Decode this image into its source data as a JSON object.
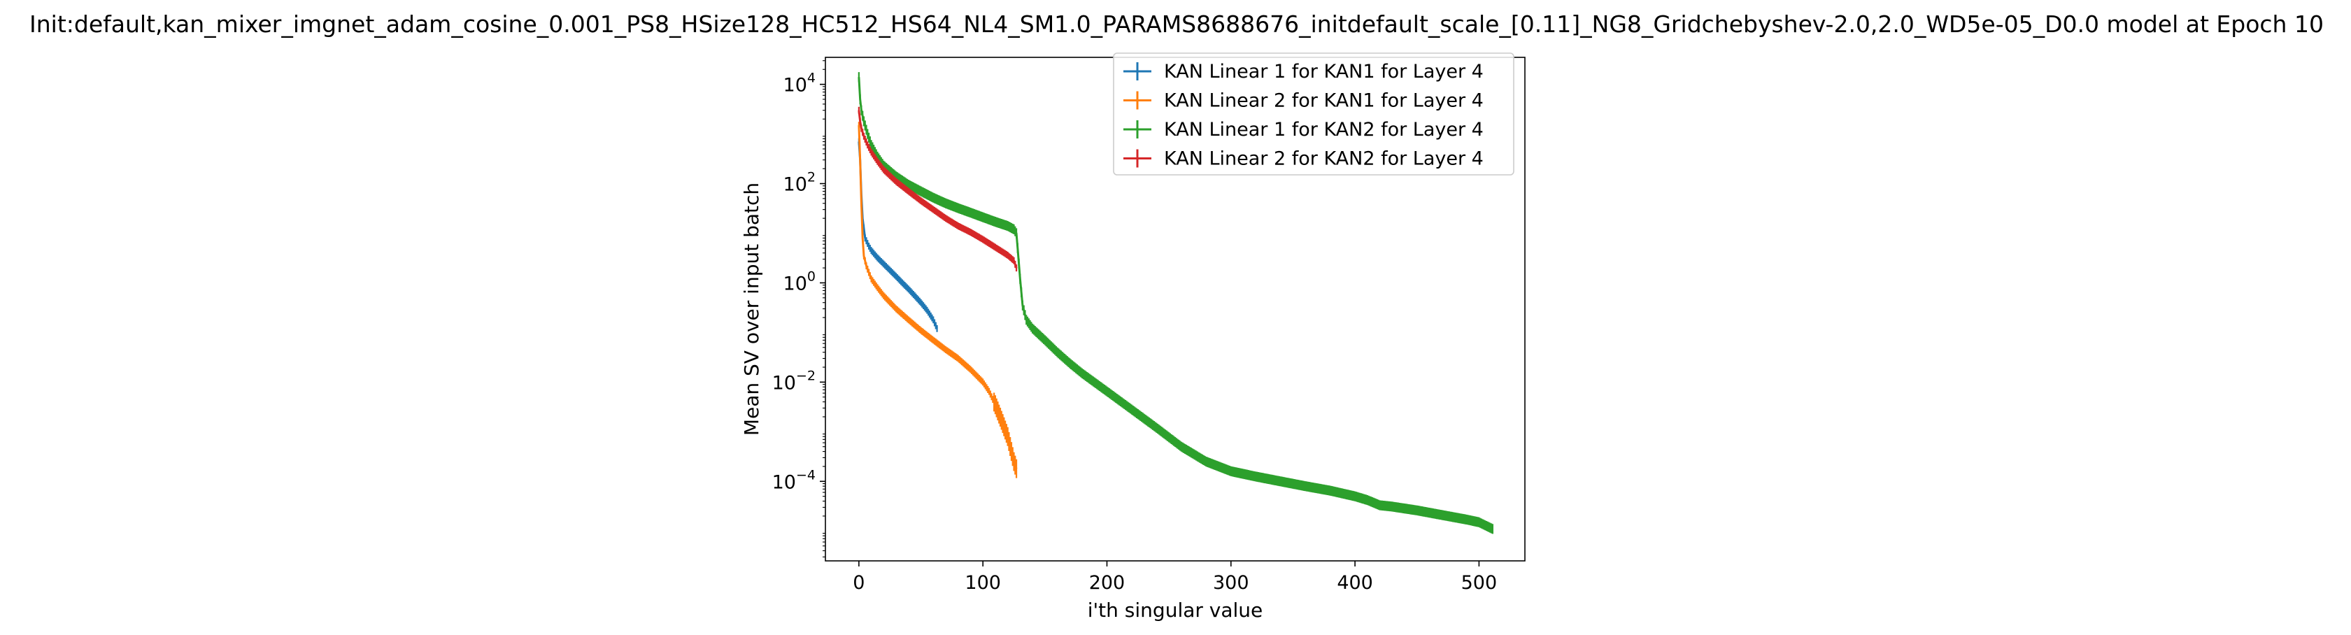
{
  "chart_data": {
    "type": "line",
    "title": "Init:default,kan_mixer_imgnet_adam_cosine_0.001_PS8_HSize128_HC512_HS64_NL4_SM1.0_PARAMS8688676_initdefault_scale_[0.11]_NG8_Gridchebyshev-2.0,2.0_WD5e-05_D0.0 model at Epoch 10",
    "xlabel": "i'th singular value",
    "ylabel": "Mean SV over input batch",
    "xlim": [
      -27,
      537
    ],
    "ylim": [
      2.5e-06,
      35000.0
    ],
    "yscale": "log",
    "grid": false,
    "legend_position": "top-right",
    "x_ticks": [
      0,
      100,
      200,
      300,
      400,
      500
    ],
    "x_tick_labels": [
      "0",
      "100",
      "200",
      "300",
      "400",
      "500"
    ],
    "y_ticks": [
      0.0001,
      0.01,
      1,
      100,
      10000
    ],
    "y_tick_labels": [
      {
        "base": "10",
        "exp": "−4"
      },
      {
        "base": "10",
        "exp": "−2"
      },
      {
        "base": "10",
        "exp": "0"
      },
      {
        "base": "10",
        "exp": "2"
      },
      {
        "base": "10",
        "exp": "4"
      }
    ],
    "series": [
      {
        "name": "KAN Linear 1 for KAN1 for Layer 4",
        "color": "#1f77b4",
        "n_points": 64,
        "x": [
          0,
          1,
          2,
          3,
          5,
          8,
          10,
          15,
          20,
          25,
          30,
          35,
          40,
          45,
          50,
          55,
          60,
          63
        ],
        "y": [
          700,
          300,
          60,
          20,
          8,
          5.5,
          4.5,
          3.2,
          2.4,
          1.8,
          1.35,
          1.0,
          0.75,
          0.55,
          0.4,
          0.28,
          0.18,
          0.12
        ]
      },
      {
        "name": "KAN Linear 2 for KAN1 for Layer 4",
        "color": "#ff7f0e",
        "n_points": 128,
        "x": [
          0,
          1,
          2,
          3,
          4,
          6,
          10,
          15,
          20,
          30,
          40,
          50,
          60,
          70,
          80,
          90,
          100,
          105,
          110,
          115,
          120,
          123,
          125,
          127
        ],
        "y": [
          1500,
          300,
          40,
          8,
          3.5,
          2.2,
          1.2,
          0.8,
          0.55,
          0.3,
          0.18,
          0.11,
          0.07,
          0.045,
          0.03,
          0.018,
          0.01,
          0.0065,
          0.0035,
          0.0017,
          0.0008,
          0.0004,
          0.00025,
          0.00018
        ]
      },
      {
        "name": "KAN Linear 1 for KAN2 for Layer 4",
        "color": "#2ca02c",
        "n_points": 512,
        "x": [
          0,
          1,
          2,
          4,
          7,
          10,
          15,
          20,
          30,
          40,
          50,
          60,
          70,
          80,
          90,
          100,
          110,
          120,
          125,
          127,
          128,
          130,
          132,
          135,
          140,
          150,
          160,
          170,
          180,
          200,
          220,
          240,
          260,
          280,
          300,
          320,
          340,
          360,
          380,
          400,
          410,
          420,
          430,
          450,
          470,
          490,
          500,
          505,
          511
        ],
        "y": [
          14000,
          5000,
          3000,
          1800,
          1000,
          600,
          350,
          230,
          140,
          95,
          70,
          52,
          40,
          32,
          26,
          21,
          17,
          14,
          12,
          10,
          5,
          1.2,
          0.35,
          0.18,
          0.12,
          0.07,
          0.04,
          0.024,
          0.015,
          0.0065,
          0.0028,
          0.0012,
          0.0005,
          0.00025,
          0.00016,
          0.000125,
          0.0001,
          8e-05,
          6.5e-05,
          5e-05,
          4.2e-05,
          3.3e-05,
          3.1e-05,
          2.6e-05,
          2.1e-05,
          1.7e-05,
          1.5e-05,
          1.3e-05,
          1.1e-05
        ]
      },
      {
        "name": "KAN Linear 2 for KAN2 for Layer 4",
        "color": "#d62728",
        "n_points": 128,
        "x": [
          0,
          1,
          2,
          4,
          7,
          10,
          15,
          20,
          30,
          40,
          50,
          60,
          70,
          80,
          90,
          100,
          110,
          120,
          125,
          127
        ],
        "y": [
          3000,
          1800,
          1300,
          900,
          600,
          430,
          280,
          190,
          110,
          70,
          45,
          30,
          20,
          14,
          10.5,
          7.5,
          5.2,
          3.6,
          2.8,
          2.0
        ]
      }
    ]
  }
}
